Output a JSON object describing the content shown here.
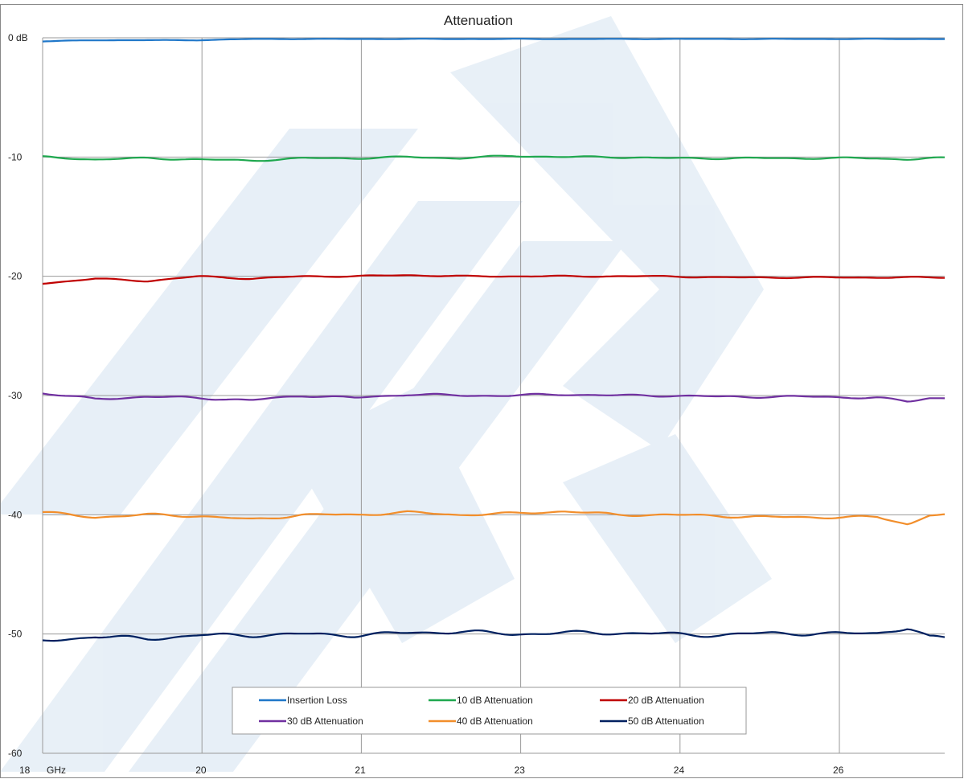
{
  "chart_data": {
    "type": "line",
    "title": "Attenuation",
    "xlabel": "GHz",
    "ylabel": "",
    "ylim": [
      -60,
      0
    ],
    "grid": true,
    "legend_position": "bottom-center",
    "x_tick_labels": [
      "18",
      "20",
      "21",
      "23",
      "24",
      "26"
    ],
    "y_tick_labels": [
      "0 dB",
      "-10",
      "-20",
      "-30",
      "-40",
      "-50",
      "-60"
    ],
    "x": [
      18.0,
      18.5,
      19.0,
      19.5,
      20.0,
      20.5,
      21.0,
      21.5,
      22.0,
      22.5,
      23.0,
      23.5,
      24.0,
      24.5,
      25.0,
      25.5,
      26.0,
      26.3,
      26.5
    ],
    "series": [
      {
        "name": "Insertion Loss",
        "color": "#1f77c9",
        "values": [
          -0.3,
          -0.2,
          -0.2,
          -0.2,
          -0.1,
          -0.1,
          -0.1,
          -0.1,
          -0.1,
          -0.1,
          -0.1,
          -0.1,
          -0.1,
          -0.1,
          -0.1,
          -0.1,
          -0.1,
          -0.1,
          -0.1
        ]
      },
      {
        "name": "10 dB Attenuation",
        "color": "#1fa84f",
        "values": [
          -10.0,
          -10.2,
          -10.1,
          -10.2,
          -10.3,
          -10.1,
          -10.1,
          -10.0,
          -10.1,
          -9.9,
          -10.0,
          -10.0,
          -10.1,
          -10.1,
          -10.1,
          -10.1,
          -10.1,
          -10.2,
          -10.1
        ]
      },
      {
        "name": "20 dB Attenuation",
        "color": "#c00000",
        "values": [
          -20.6,
          -20.2,
          -20.4,
          -20.0,
          -20.2,
          -20.0,
          -20.0,
          -19.9,
          -20.0,
          -20.0,
          -20.0,
          -20.0,
          -20.0,
          -20.1,
          -20.1,
          -20.1,
          -20.1,
          -20.1,
          -20.1
        ]
      },
      {
        "name": "30 dB Attenuation",
        "color": "#7030a0",
        "values": [
          -29.8,
          -30.3,
          -30.1,
          -30.2,
          -30.4,
          -30.0,
          -30.2,
          -29.9,
          -30.0,
          -30.0,
          -29.9,
          -30.0,
          -30.0,
          -30.1,
          -30.1,
          -30.1,
          -30.2,
          -30.5,
          -30.2
        ]
      },
      {
        "name": "40 dB Attenuation",
        "color": "#f28e2b",
        "values": [
          -39.8,
          -40.2,
          -40.0,
          -40.1,
          -40.4,
          -40.0,
          -40.0,
          -39.8,
          -40.0,
          -39.9,
          -39.7,
          -40.0,
          -40.0,
          -40.1,
          -40.2,
          -40.2,
          -40.2,
          -40.8,
          -40.0
        ]
      },
      {
        "name": "50 dB Attenuation",
        "color": "#002060",
        "values": [
          -50.6,
          -50.2,
          -50.4,
          -50.1,
          -50.1,
          -50.0,
          -50.1,
          -49.9,
          -49.8,
          -50.0,
          -49.9,
          -49.9,
          -50.0,
          -50.1,
          -49.9,
          -50.0,
          -49.9,
          -49.5,
          -50.3
        ]
      }
    ]
  }
}
